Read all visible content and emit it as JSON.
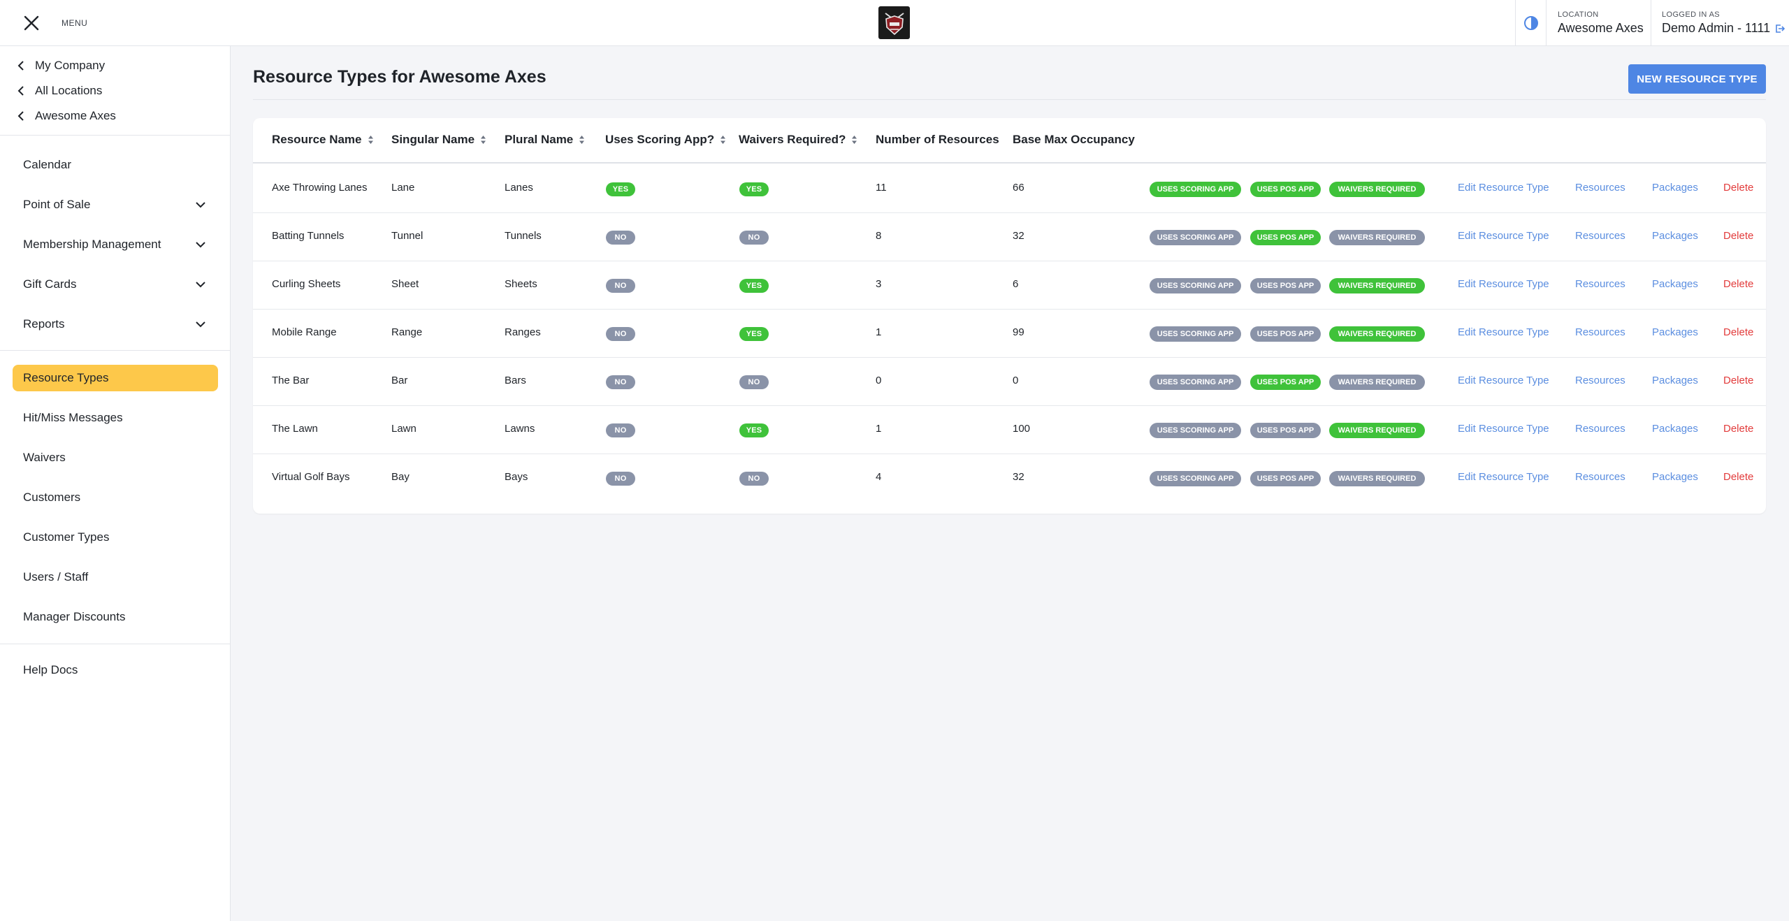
{
  "topbar": {
    "menu_label": "MENU",
    "location_label": "LOCATION",
    "location_value": "Awesome Axes",
    "logged_label": "LOGGED IN AS",
    "logged_value": "Demo Admin - 1111"
  },
  "sidebar": {
    "breadcrumbs": [
      "My Company",
      "All Locations",
      "Awesome Axes"
    ],
    "items": [
      {
        "label": "Calendar",
        "has_caret": false
      },
      {
        "label": "Point of Sale",
        "has_caret": true
      },
      {
        "label": "Membership Management",
        "has_caret": true
      },
      {
        "label": "Gift Cards",
        "has_caret": true
      },
      {
        "label": "Reports",
        "has_caret": true
      }
    ],
    "items2": [
      {
        "label": "Resource Types",
        "active": true
      },
      {
        "label": "Hit/Miss Messages"
      },
      {
        "label": "Waivers"
      },
      {
        "label": "Customers"
      },
      {
        "label": "Customer Types"
      },
      {
        "label": "Users / Staff"
      },
      {
        "label": "Manager Discounts"
      }
    ],
    "help": "Help Docs"
  },
  "main": {
    "title": "Resource Types for Awesome Axes",
    "new_button": "NEW RESOURCE TYPE"
  },
  "table": {
    "columns": [
      "Resource Name",
      "Singular Name",
      "Plural Name",
      "Uses Scoring App?",
      "Waivers Required?",
      "Number of Resources",
      "Base Max Occupancy"
    ],
    "tag_labels": {
      "scoring": "USES SCORING APP",
      "pos": "USES POS APP",
      "waivers": "WAIVERS REQUIRED"
    },
    "action_labels": {
      "edit": "Edit Resource Type",
      "resources": "Resources",
      "packages": "Packages",
      "delete": "Delete"
    },
    "rows": [
      {
        "name": "Axe Throwing Lanes",
        "singular": "Lane",
        "plural": "Lanes",
        "scoring": "YES",
        "waivers": "YES",
        "count": "11",
        "occupancy": "66",
        "tag_scoring": true,
        "tag_pos": true,
        "tag_waivers": true
      },
      {
        "name": "Batting Tunnels",
        "singular": "Tunnel",
        "plural": "Tunnels",
        "scoring": "NO",
        "waivers": "NO",
        "count": "8",
        "occupancy": "32",
        "tag_scoring": false,
        "tag_pos": true,
        "tag_waivers": false
      },
      {
        "name": "Curling Sheets",
        "singular": "Sheet",
        "plural": "Sheets",
        "scoring": "NO",
        "waivers": "YES",
        "count": "3",
        "occupancy": "6",
        "tag_scoring": false,
        "tag_pos": false,
        "tag_waivers": true
      },
      {
        "name": "Mobile Range",
        "singular": "Range",
        "plural": "Ranges",
        "scoring": "NO",
        "waivers": "YES",
        "count": "1",
        "occupancy": "99",
        "tag_scoring": false,
        "tag_pos": false,
        "tag_waivers": true
      },
      {
        "name": "The Bar",
        "singular": "Bar",
        "plural": "Bars",
        "scoring": "NO",
        "waivers": "NO",
        "count": "0",
        "occupancy": "0",
        "tag_scoring": false,
        "tag_pos": true,
        "tag_waivers": false
      },
      {
        "name": "The Lawn",
        "singular": "Lawn",
        "plural": "Lawns",
        "scoring": "NO",
        "waivers": "YES",
        "count": "1",
        "occupancy": "100",
        "tag_scoring": false,
        "tag_pos": false,
        "tag_waivers": true
      },
      {
        "name": "Virtual Golf Bays",
        "singular": "Bay",
        "plural": "Bays",
        "scoring": "NO",
        "waivers": "NO",
        "count": "4",
        "occupancy": "32",
        "tag_scoring": false,
        "tag_pos": false,
        "tag_waivers": false
      }
    ]
  },
  "colors": {
    "accent": "#4e86e4",
    "active_nav": "#fdc84a",
    "on": "#3fc23a",
    "off": "#8a93a8",
    "link": "#5b8ee0",
    "danger": "#e23b3b"
  }
}
